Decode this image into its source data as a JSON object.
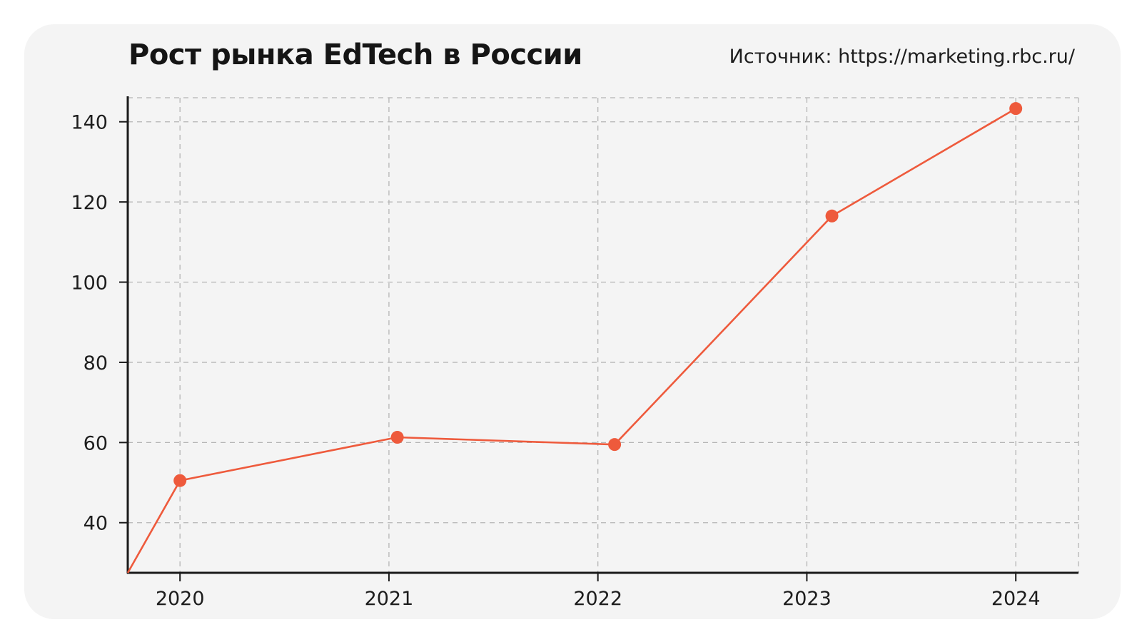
{
  "chart_data": {
    "type": "line",
    "title": "Рост рынка EdTech в России",
    "source": "Источник: https://marketing.rbc.ru/",
    "xlabel": "",
    "ylabel": "",
    "x": [
      2020,
      2021,
      2022,
      2023,
      2024
    ],
    "x_ticks": [
      "2020",
      "2021",
      "2022",
      "2023",
      "2024"
    ],
    "y_ticks": [
      "40",
      "60",
      "80",
      "100",
      "120",
      "140"
    ],
    "xlim": [
      2019.75,
      2024.3
    ],
    "ylim": [
      27.5,
      146
    ],
    "series": [
      {
        "points": [
          {
            "x": 2019.75,
            "y": 27.5,
            "marker": false
          },
          {
            "x": 2020.0,
            "y": 50.5,
            "marker": true
          },
          {
            "x": 2021.04,
            "y": 61.3,
            "marker": true
          },
          {
            "x": 2022.08,
            "y": 59.5,
            "marker": true
          },
          {
            "x": 2023.12,
            "y": 116.5,
            "marker": true
          },
          {
            "x": 2024.0,
            "y": 143.3,
            "marker": true
          }
        ]
      }
    ],
    "grid": true,
    "line_color": "#ee5a3c",
    "axis_color": "#1a1a1a",
    "grid_color": "#b5b5b5"
  }
}
